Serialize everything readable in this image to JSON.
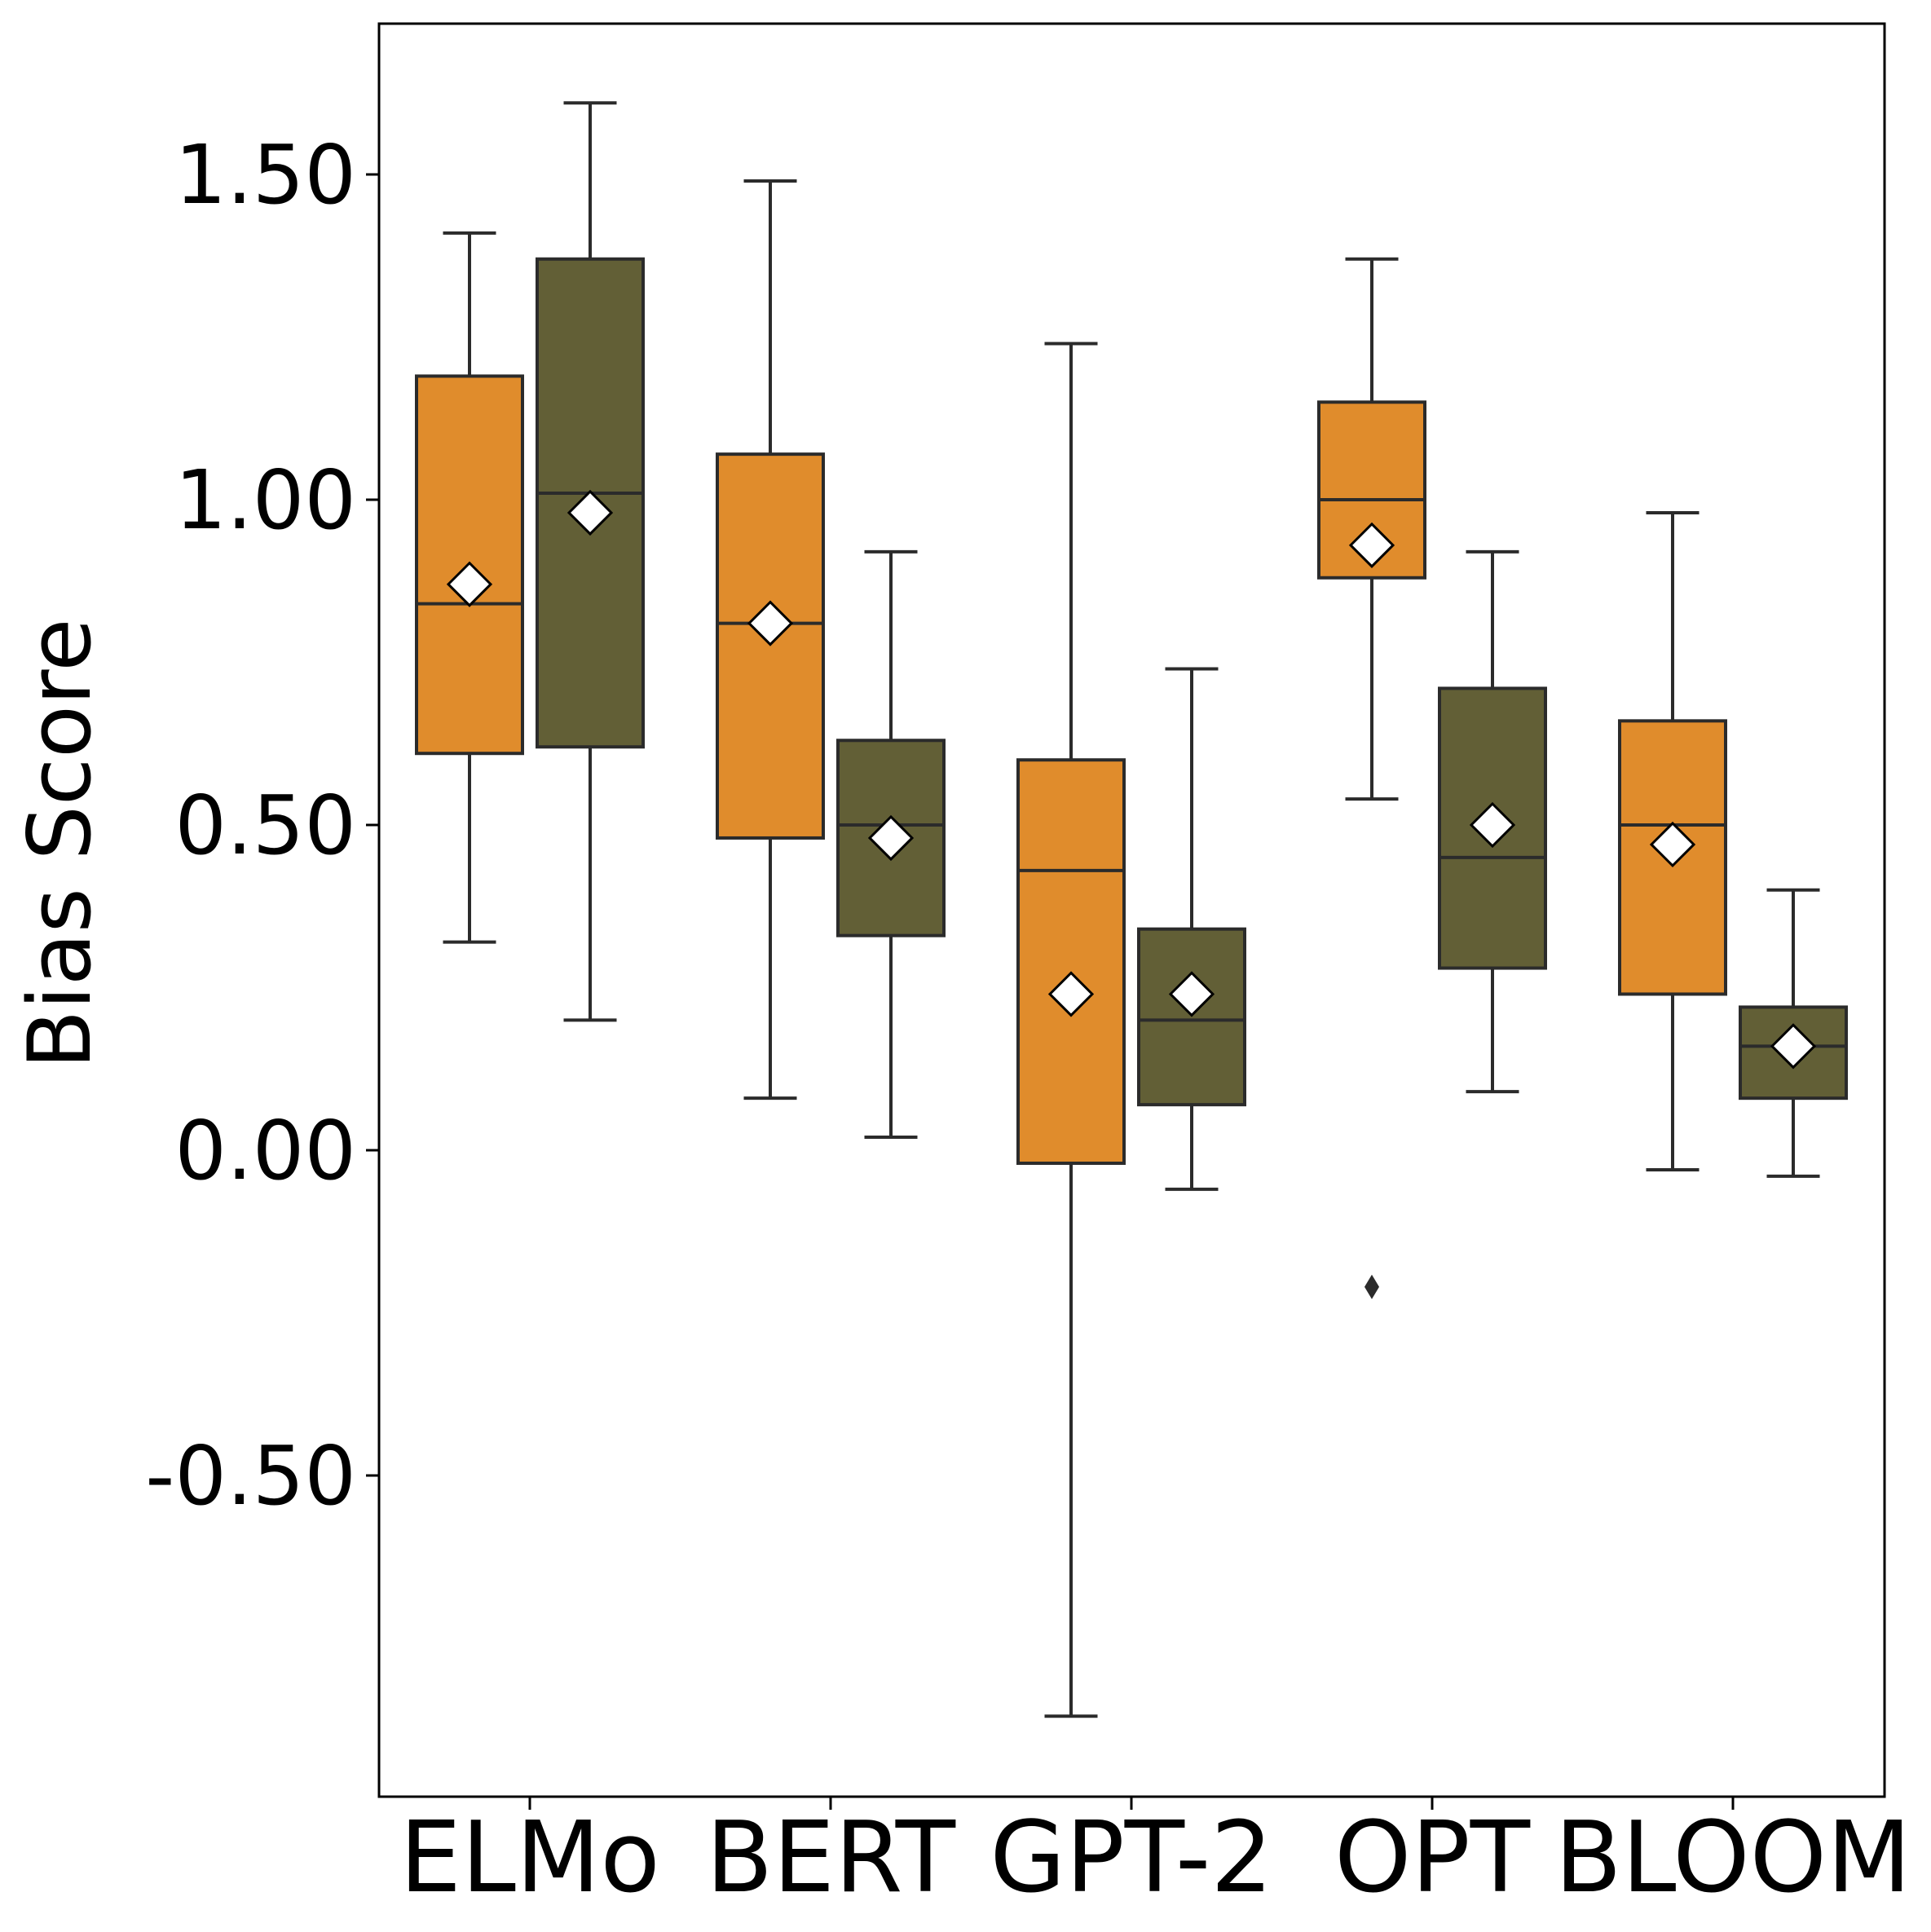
{
  "chart_data": {
    "type": "box",
    "title": "",
    "xlabel": "",
    "ylabel": "Bias Score",
    "ylim": [
      -0.99,
      1.74
    ],
    "yticks": [
      -0.5,
      0.0,
      0.5,
      1.0,
      1.5
    ],
    "ytick_labels": [
      "-0.50",
      "0.00",
      "0.50",
      "1.00",
      "1.50"
    ],
    "categories": [
      "ELMo",
      "BERT",
      "GPT-2",
      "OPT",
      "BLOOM"
    ],
    "grid": false,
    "legend": "none",
    "series": [
      {
        "color": "#e08c2c",
        "boxes": [
          {
            "whisker_low": 0.32,
            "q1": 0.61,
            "median": 0.84,
            "q3": 1.19,
            "whisker_high": 1.41,
            "mean": 0.87,
            "outliers": []
          },
          {
            "whisker_low": 0.08,
            "q1": 0.48,
            "median": 0.81,
            "q3": 1.07,
            "whisker_high": 1.49,
            "mean": 0.81,
            "outliers": []
          },
          {
            "whisker_low": -0.87,
            "q1": -0.02,
            "median": 0.43,
            "q3": 0.6,
            "whisker_high": 1.24,
            "mean": 0.24,
            "outliers": []
          },
          {
            "whisker_low": 0.54,
            "q1": 0.88,
            "median": 1.0,
            "q3": 1.15,
            "whisker_high": 1.37,
            "mean": 0.93,
            "outliers": [
              -0.21
            ]
          },
          {
            "whisker_low": -0.03,
            "q1": 0.24,
            "median": 0.5,
            "q3": 0.66,
            "whisker_high": 0.98,
            "mean": 0.47,
            "outliers": []
          }
        ]
      },
      {
        "color": "#625f36",
        "boxes": [
          {
            "whisker_low": 0.2,
            "q1": 0.62,
            "median": 1.01,
            "q3": 1.37,
            "whisker_high": 1.61,
            "mean": 0.98,
            "outliers": []
          },
          {
            "whisker_low": 0.02,
            "q1": 0.33,
            "median": 0.5,
            "q3": 0.63,
            "whisker_high": 0.92,
            "mean": 0.48,
            "outliers": []
          },
          {
            "whisker_low": -0.06,
            "q1": 0.07,
            "median": 0.2,
            "q3": 0.34,
            "whisker_high": 0.74,
            "mean": 0.24,
            "outliers": []
          },
          {
            "whisker_low": 0.09,
            "q1": 0.28,
            "median": 0.45,
            "q3": 0.71,
            "whisker_high": 0.92,
            "mean": 0.5,
            "outliers": []
          },
          {
            "whisker_low": -0.04,
            "q1": 0.08,
            "median": 0.16,
            "q3": 0.22,
            "whisker_high": 0.4,
            "mean": 0.16,
            "outliers": []
          }
        ]
      }
    ]
  }
}
